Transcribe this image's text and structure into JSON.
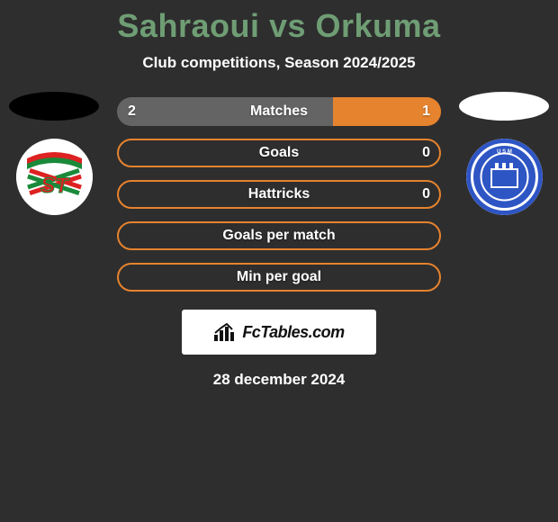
{
  "title_color": "#6f9d74",
  "background_color": "#2e2e2e",
  "accent_color": "#e6832e",
  "neutral_bar_color": "#646464",
  "title": "Sahraoui vs Orkuma",
  "subtitle": "Club competitions, Season 2024/2025",
  "date": "28 december 2024",
  "brand": "FcTables.com",
  "left_ellipse_color": "#000000",
  "right_ellipse_color": "#ffffff",
  "bars": [
    {
      "label": "Matches",
      "left_val": "2",
      "right_val": "1",
      "left_pct": 66.7,
      "right_pct": 33.3,
      "style": "split"
    },
    {
      "label": "Goals",
      "left_val": "",
      "right_val": "0",
      "left_pct": 0,
      "right_pct": 0,
      "style": "outline"
    },
    {
      "label": "Hattricks",
      "left_val": "",
      "right_val": "0",
      "left_pct": 0,
      "right_pct": 0,
      "style": "outline"
    },
    {
      "label": "Goals per match",
      "left_val": "",
      "right_val": "",
      "left_pct": 0,
      "right_pct": 0,
      "style": "outline"
    },
    {
      "label": "Min per goal",
      "left_val": "",
      "right_val": "",
      "left_pct": 0,
      "right_pct": 0,
      "style": "outline"
    }
  ],
  "crest_left": {
    "bg": "#ffffff",
    "stripe1": "#1a8a3a",
    "stripe2": "#d22",
    "top_band": "#d22",
    "letters": "ST"
  },
  "crest_right": {
    "bg": "#2e55c4",
    "ring": "#ffffff",
    "inner": "#2e55c4"
  }
}
